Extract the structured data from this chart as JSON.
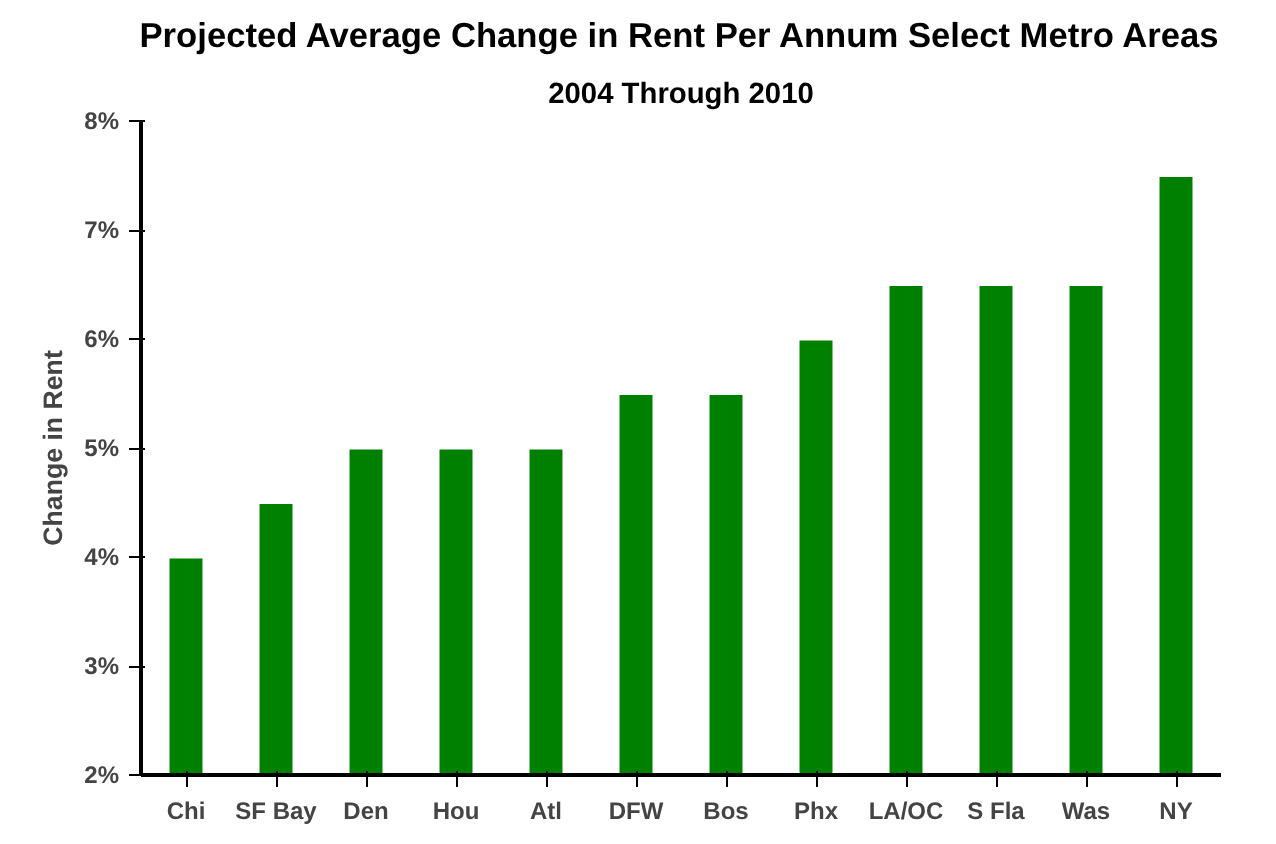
{
  "chart_data": {
    "type": "bar",
    "title": "Projected Average Change in Rent Per Annum Select Metro Areas",
    "subtitle": "2004 Through 2010",
    "ylabel": "Change in Rent",
    "categories": [
      "Chi",
      "SF Bay",
      "Den",
      "Hou",
      "Atl",
      "DFW",
      "Bos",
      "Phx",
      "LA/OC",
      "S Fla",
      "Was",
      "NY"
    ],
    "values": [
      4.0,
      4.5,
      5.0,
      5.0,
      5.0,
      5.5,
      5.5,
      6.0,
      6.5,
      6.5,
      6.5,
      7.5
    ],
    "color": "#008000",
    "ylim": [
      2,
      8
    ],
    "yticks": [
      {
        "value": 2,
        "label": "2%"
      },
      {
        "value": 3,
        "label": "3%"
      },
      {
        "value": 4,
        "label": "4%"
      },
      {
        "value": 5,
        "label": "5%"
      },
      {
        "value": 6,
        "label": "6%"
      },
      {
        "value": 7,
        "label": "7%"
      },
      {
        "value": 8,
        "label": "8%"
      }
    ],
    "grid": false
  }
}
